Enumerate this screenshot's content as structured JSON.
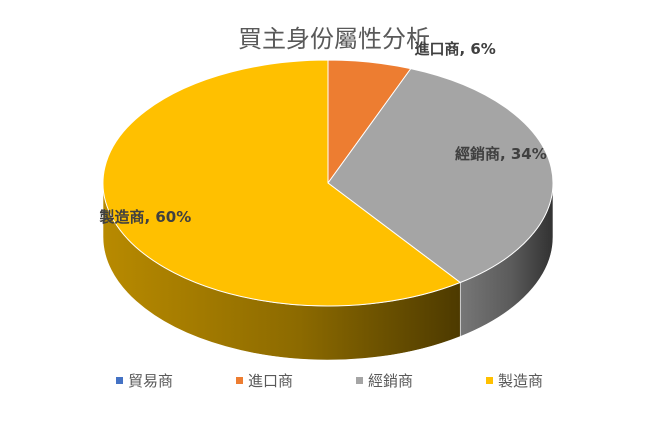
{
  "chart_data": {
    "type": "pie",
    "style": "3d",
    "title": "買主身份屬性分析",
    "categories": [
      "貿易商",
      "進口商",
      "經銷商",
      "製造商"
    ],
    "values": [
      0,
      6,
      34,
      60
    ],
    "unit": "%",
    "colors": [
      "#4472C4",
      "#ED7D31",
      "#A5A5A5",
      "#FFC000"
    ],
    "data_labels": [
      "",
      "進口商, 6%",
      "經銷商, 34%",
      "製造商, 60%"
    ],
    "legend_position": "bottom"
  }
}
